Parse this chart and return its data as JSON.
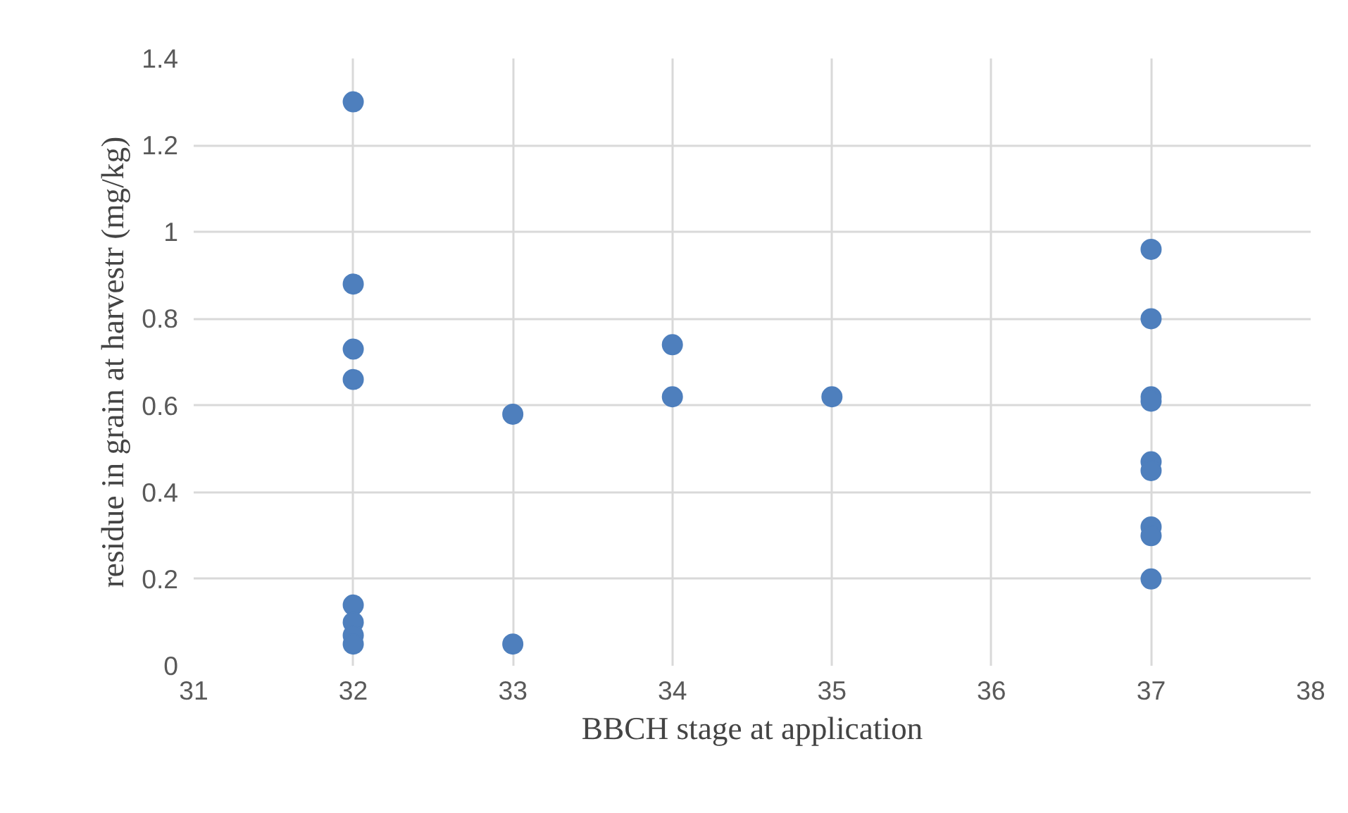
{
  "chart_data": {
    "type": "scatter",
    "xlabel": "BBCH stage at application",
    "ylabel": "residue in grain at harvestr (mg/kg)",
    "x": [
      32,
      32,
      32,
      32,
      32,
      32,
      32,
      32,
      33,
      33,
      34,
      34,
      35,
      37,
      37,
      37,
      37,
      37,
      37,
      37,
      37,
      37
    ],
    "values": [
      1.3,
      0.88,
      0.73,
      0.66,
      0.14,
      0.1,
      0.07,
      0.05,
      0.58,
      0.05,
      0.74,
      0.62,
      0.62,
      0.96,
      0.8,
      0.62,
      0.61,
      0.47,
      0.45,
      0.32,
      0.3,
      0.2
    ],
    "color": "#4e7fbd",
    "marker": "circle",
    "grid": true,
    "xlim": [
      31,
      38
    ],
    "xticks": [
      31,
      32,
      33,
      34,
      35,
      36,
      37,
      38
    ],
    "ylim": [
      0,
      1.4
    ],
    "yticks": [
      0,
      0.2,
      0.4,
      0.6,
      0.8,
      1,
      1.2,
      1.4
    ]
  }
}
